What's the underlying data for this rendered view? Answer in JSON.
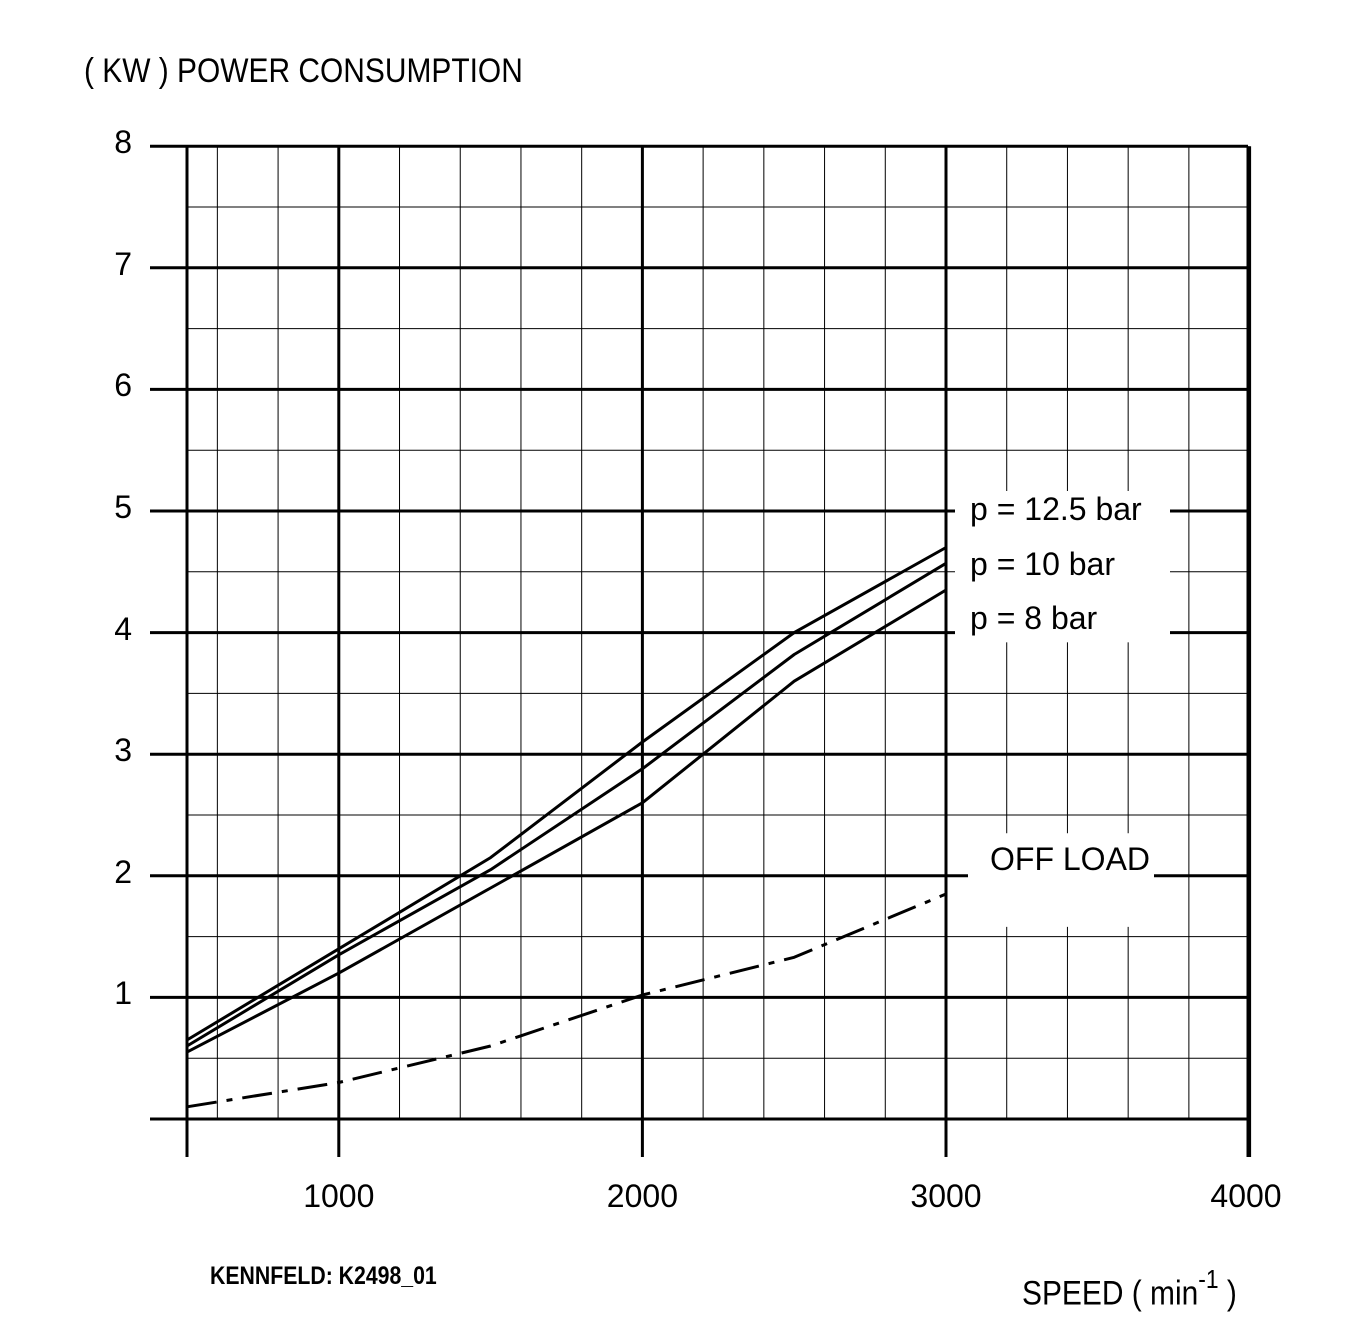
{
  "chart_data": {
    "type": "line",
    "ylabel": "( KW )  POWER CONSUMPTION",
    "xlabel_main": "SPEED  ( min",
    "xlabel_sup": "-1",
    "xlabel_end": " )",
    "note": "KENNFELD:  K2498_01",
    "xlim": [
      380,
      4000
    ],
    "ylim": [
      0,
      8
    ],
    "xticks": [
      {
        "value": 1000,
        "label": "1000"
      },
      {
        "value": 2000,
        "label": "2000"
      },
      {
        "value": 3000,
        "label": "3000"
      },
      {
        "value": 4000,
        "label": "4000"
      }
    ],
    "yticks": [
      {
        "value": 1,
        "label": "1"
      },
      {
        "value": 2,
        "label": "2"
      },
      {
        "value": 3,
        "label": "3"
      },
      {
        "value": 4,
        "label": "4"
      },
      {
        "value": 5,
        "label": "5"
      },
      {
        "value": 6,
        "label": "6"
      },
      {
        "value": 7,
        "label": "7"
      },
      {
        "value": 8,
        "label": "8"
      }
    ],
    "grid": true,
    "series": [
      {
        "name": "p = 12.5 bar",
        "style": "solid",
        "label_y": 5.0,
        "x": [
          500,
          1000,
          1500,
          2000,
          2500,
          3000
        ],
        "y": [
          0.65,
          1.4,
          2.15,
          3.1,
          4.0,
          4.7
        ]
      },
      {
        "name": "p = 10 bar",
        "style": "solid",
        "label_y": 4.55,
        "x": [
          500,
          1000,
          1500,
          2000,
          2500,
          3000
        ],
        "y": [
          0.6,
          1.35,
          2.05,
          2.88,
          3.82,
          4.57
        ]
      },
      {
        "name": "p = 8 bar",
        "style": "solid",
        "label_y": 4.1,
        "x": [
          500,
          1000,
          1500,
          2000,
          2500,
          3000
        ],
        "y": [
          0.55,
          1.2,
          1.9,
          2.6,
          3.6,
          4.35
        ]
      },
      {
        "name": "OFF LOAD",
        "style": "dashdot",
        "label_y": 2.12,
        "x": [
          500,
          1000,
          1500,
          2000,
          2500,
          3000
        ],
        "y": [
          0.1,
          0.3,
          0.6,
          1.02,
          1.33,
          1.85
        ]
      }
    ]
  }
}
